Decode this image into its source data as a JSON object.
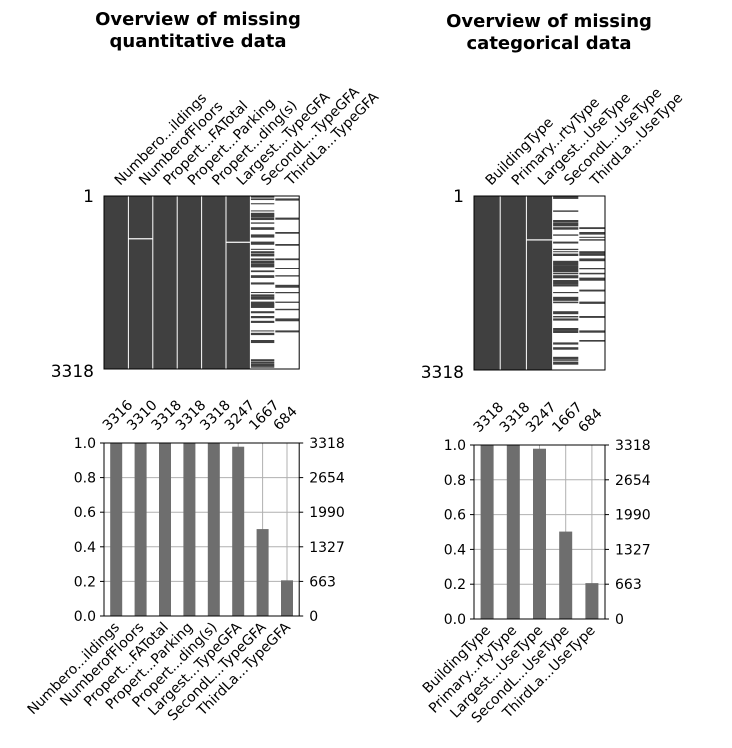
{
  "colors": {
    "matrix": "#404040",
    "bar": "#6e6e6e",
    "grid": "#b0b0b0",
    "axis": "#000000"
  },
  "chart_data": [
    {
      "type": "matrix",
      "title": "Overview of missing\nquantitative data",
      "columns": [
        "Numbero...ildings",
        "NumberofFloors",
        "Propert...FATotal",
        "Propert...Parking",
        "Propert...ding(s)",
        "Largest...TypeGFA",
        "SecondL...TypeGFA",
        "ThirdLa...TypeGFA"
      ],
      "row_labels": [
        "1",
        "3318"
      ],
      "n_rows": 3318,
      "counts": [
        3316,
        3310,
        3318,
        3318,
        3318,
        3247,
        1667,
        684
      ]
    },
    {
      "type": "matrix",
      "title": "Overview of missing\ncategorical data",
      "columns": [
        "BuildingType",
        "Primary...rtyType",
        "Largest...UseType",
        "SecondL...UseType",
        "ThirdLa...UseType"
      ],
      "row_labels": [
        "1",
        "3318"
      ],
      "n_rows": 3318,
      "counts": [
        3318,
        3318,
        3247,
        1667,
        684
      ]
    },
    {
      "type": "bar",
      "categories": [
        "Numbero...ildings",
        "NumberofFloors",
        "Propert...FATotal",
        "Propert...Parking",
        "Propert...ding(s)",
        "Largest...TypeGFA",
        "SecondL...TypeGFA",
        "ThirdLa...TypeGFA"
      ],
      "values": [
        3316,
        3310,
        3318,
        3318,
        3318,
        3247,
        1667,
        684
      ],
      "data_labels": [
        "3316",
        "3310",
        "3318",
        "3318",
        "3318",
        "3247",
        "1667",
        "684"
      ],
      "ylim": [
        0,
        1.0
      ],
      "yticks": [
        "0.0",
        "0.2",
        "0.4",
        "0.6",
        "0.8",
        "1.0"
      ],
      "right_ticks": [
        "0",
        "663",
        "1327",
        "1990",
        "2654",
        "3318"
      ],
      "grid": true
    },
    {
      "type": "bar",
      "categories": [
        "BuildingType",
        "Primary...rtyType",
        "Largest...UseType",
        "SecondL...UseType",
        "ThirdLa...UseType"
      ],
      "values": [
        3318,
        3318,
        3247,
        1667,
        684
      ],
      "data_labels": [
        "3318",
        "3318",
        "3247",
        "1667",
        "684"
      ],
      "ylim": [
        0,
        1.0
      ],
      "yticks": [
        "0.0",
        "0.2",
        "0.4",
        "0.6",
        "0.8",
        "1.0"
      ],
      "right_ticks": [
        "0",
        "663",
        "1327",
        "1990",
        "2654",
        "3318"
      ],
      "grid": true
    }
  ]
}
